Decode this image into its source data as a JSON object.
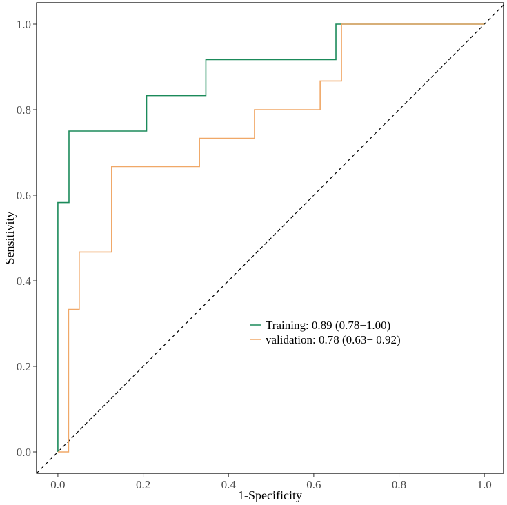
{
  "chart_data": {
    "type": "line",
    "title": "",
    "xlabel": "1-Specificity",
    "ylabel": "Sensitivity",
    "xlim": [
      -0.05,
      1.045
    ],
    "ylim": [
      -0.05,
      1.05
    ],
    "grid": false,
    "legend_position": "center-right",
    "x_ticks": [
      {
        "value": 0.0,
        "label": "0.0"
      },
      {
        "value": 0.2,
        "label": "0.2"
      },
      {
        "value": 0.4,
        "label": "0.4"
      },
      {
        "value": 0.6,
        "label": "0.6"
      },
      {
        "value": 0.8,
        "label": "0.8"
      },
      {
        "value": 1.0,
        "label": "1.0"
      }
    ],
    "y_ticks": [
      {
        "value": 0.0,
        "label": "0.0"
      },
      {
        "value": 0.2,
        "label": "0.2"
      },
      {
        "value": 0.4,
        "label": "0.4"
      },
      {
        "value": 0.6,
        "label": "0.6"
      },
      {
        "value": 0.8,
        "label": "0.8"
      },
      {
        "value": 1.0,
        "label": "1.0"
      }
    ],
    "reference_line": {
      "x": [
        -0.05,
        1.045
      ],
      "y": [
        -0.05,
        1.045
      ],
      "style": "dashed",
      "color": "#000000"
    },
    "series": [
      {
        "name": "Training",
        "legend_label": "Training: 0.89 (0.78−1.00)",
        "color": "#1b8a5a",
        "step": true,
        "x": [
          0.0,
          0.0,
          0.026,
          0.026,
          0.208,
          0.208,
          0.347,
          0.347,
          0.652,
          0.652,
          1.0
        ],
        "y": [
          0.0,
          0.583,
          0.583,
          0.75,
          0.75,
          0.833,
          0.833,
          0.917,
          0.917,
          1.0,
          1.0
        ]
      },
      {
        "name": "validation",
        "legend_label": "validation: 0.78 (0.63− 0.92)",
        "color": "#f0a868",
        "step": true,
        "x": [
          0.0,
          0.025,
          0.025,
          0.05,
          0.05,
          0.126,
          0.126,
          0.332,
          0.332,
          0.461,
          0.461,
          0.615,
          0.615,
          0.665,
          0.665,
          1.0
        ],
        "y": [
          0.0,
          0.0,
          0.333,
          0.333,
          0.467,
          0.467,
          0.667,
          0.667,
          0.733,
          0.733,
          0.8,
          0.8,
          0.867,
          0.867,
          1.0,
          1.0
        ]
      }
    ]
  }
}
